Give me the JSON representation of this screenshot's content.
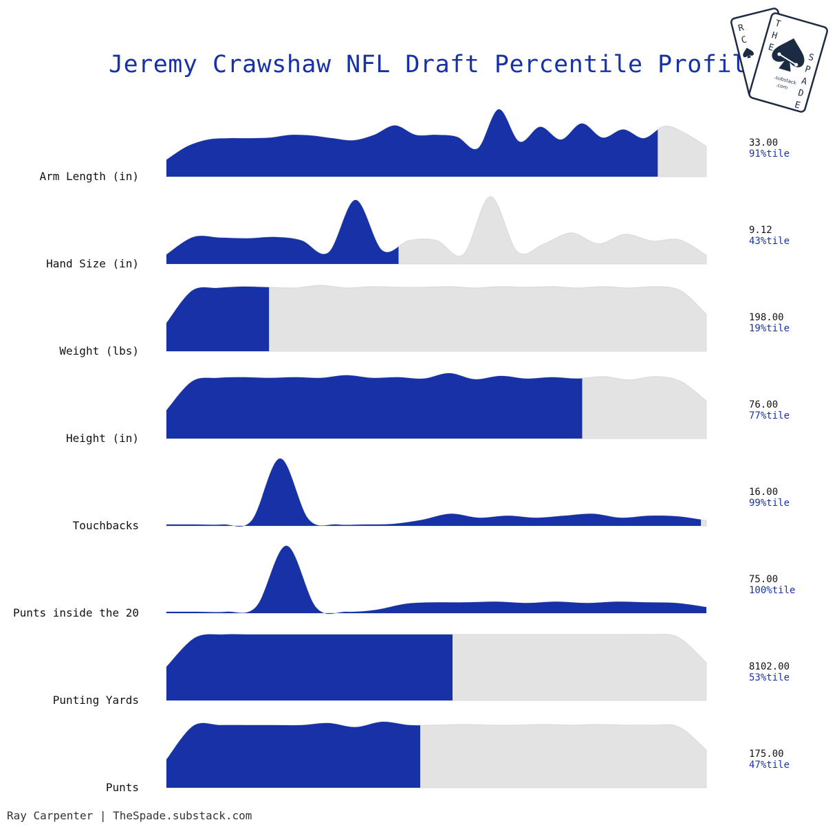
{
  "title": "Jeremy Crawshaw NFL Draft Percentile Profile",
  "credit": "Ray Carpenter | TheSpade.substack.com",
  "logo": {
    "back_card_letters": [
      "R",
      "C",
      "E"
    ],
    "front_card_left": [
      "T",
      "H",
      "E"
    ],
    "front_card_right": [
      "S",
      "P",
      "A",
      "D",
      "E"
    ],
    "small_text_1": ".substack",
    "small_text_2": ".com",
    "icon": "spade-icon"
  },
  "colors": {
    "highlight": "#1732a6",
    "background_density": "#e3e3e3",
    "title": "#1732a6",
    "percentile_text": "#1732a6",
    "value_text": "#111111"
  },
  "chart_data": {
    "type": "area",
    "description_kind": "ridgeline density with fill up to player's percentile",
    "series": [
      {
        "name": "Arm Length (in)",
        "value": "33.00",
        "percentile_label": "91%tile",
        "percentile": 91,
        "density": [
          0.25,
          0.45,
          0.55,
          0.57,
          0.57,
          0.58,
          0.62,
          0.61,
          0.57,
          0.54,
          0.62,
          0.76,
          0.62,
          0.62,
          0.59,
          0.42,
          1.0,
          0.52,
          0.74,
          0.55,
          0.79,
          0.58,
          0.7,
          0.57,
          0.75,
          0.64,
          0.45
        ]
      },
      {
        "name": "Hand Size (in)",
        "value": "9.12",
        "percentile_label": "43%tile",
        "percentile": 43,
        "density": [
          0.14,
          0.4,
          0.39,
          0.38,
          0.4,
          0.35,
          0.17,
          0.95,
          0.2,
          0.35,
          0.35,
          0.14,
          1.0,
          0.18,
          0.3,
          0.46,
          0.3,
          0.44,
          0.34,
          0.36,
          0.13
        ]
      },
      {
        "name": "Weight (lbs)",
        "value": "198.00",
        "percentile_label": "19%tile",
        "percentile": 19,
        "density": [
          0.42,
          0.9,
          0.94,
          0.96,
          0.95,
          0.94,
          0.98,
          0.94,
          0.96,
          0.95,
          0.95,
          0.96,
          0.94,
          0.96,
          0.95,
          0.96,
          0.94,
          0.96,
          0.94,
          0.96,
          0.9,
          0.55
        ]
      },
      {
        "name": "Height (in)",
        "value": "76.00",
        "percentile_label": "77%tile",
        "percentile": 77,
        "density": [
          0.42,
          0.85,
          0.9,
          0.91,
          0.9,
          0.91,
          0.9,
          0.94,
          0.9,
          0.91,
          0.89,
          0.97,
          0.88,
          0.93,
          0.89,
          0.91,
          0.89,
          0.92,
          0.87,
          0.92,
          0.85,
          0.56
        ]
      },
      {
        "name": "Touchbacks",
        "value": "16.00",
        "percentile_label": "99%tile",
        "percentile": 99,
        "density": [
          0.02,
          0.02,
          0.02,
          0.08,
          1.0,
          0.1,
          0.02,
          0.02,
          0.03,
          0.09,
          0.18,
          0.12,
          0.15,
          0.12,
          0.15,
          0.18,
          0.12,
          0.15,
          0.14,
          0.08
        ]
      },
      {
        "name": "Punts inside the 20",
        "value": "75.00",
        "percentile_label": "100%tile",
        "percentile": 100,
        "density": [
          0.02,
          0.02,
          0.02,
          0.1,
          1.0,
          0.08,
          0.02,
          0.05,
          0.14,
          0.16,
          0.16,
          0.17,
          0.15,
          0.17,
          0.15,
          0.17,
          0.16,
          0.15,
          0.09
        ]
      },
      {
        "name": "Punting Yards",
        "value": "8102.00",
        "percentile_label": "53%tile",
        "percentile": 53,
        "density": [
          0.5,
          0.93,
          0.98,
          0.98,
          0.98,
          0.98,
          0.98,
          0.98,
          0.98,
          0.98,
          0.98,
          0.98,
          0.98,
          0.98,
          0.98,
          0.98,
          0.98,
          0.98,
          0.94,
          0.56
        ]
      },
      {
        "name": "Punts",
        "value": "175.00",
        "percentile_label": "47%tile",
        "percentile": 47,
        "density": [
          0.42,
          0.92,
          0.93,
          0.93,
          0.93,
          0.93,
          0.96,
          0.9,
          0.98,
          0.93,
          0.93,
          0.94,
          0.93,
          0.93,
          0.94,
          0.93,
          0.94,
          0.93,
          0.93,
          0.9,
          0.56
        ]
      }
    ]
  }
}
